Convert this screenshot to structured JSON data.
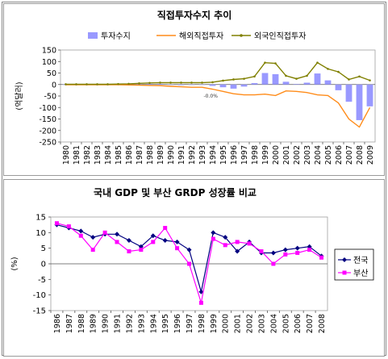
{
  "chart_data": [
    {
      "type": "bar+line",
      "title": "직접투자수지 추이",
      "ylabel": "(억달러)",
      "ylim": [
        -250,
        150
      ],
      "yticks": [
        150,
        100,
        50,
        0,
        -50,
        -100,
        -150,
        -200,
        -250
      ],
      "categories": [
        "1980",
        "1981",
        "1982",
        "1983",
        "1984",
        "1985",
        "1986",
        "1987",
        "1988",
        "1989",
        "1990",
        "1991",
        "1992",
        "1993",
        "1994",
        "1995",
        "1996",
        "1997",
        "1998",
        "1999",
        "2000",
        "2001",
        "2002",
        "2003",
        "2004",
        "2005",
        "2006",
        "2007",
        "2008",
        "2009"
      ],
      "legend_position": "top",
      "annotation": "-0.0%",
      "series": [
        {
          "name": "투자수지",
          "kind": "bar",
          "color": "#9999ff",
          "values": [
            0,
            0,
            0,
            0,
            0,
            1,
            3,
            2,
            3,
            3,
            -1,
            -3,
            -2,
            -1,
            -6,
            -12,
            -18,
            -9,
            6,
            50,
            45,
            12,
            2,
            8,
            48,
            18,
            -25,
            -75,
            -155,
            -95
          ]
        },
        {
          "name": "해외직접투자",
          "kind": "line",
          "color": "#ff8c1a",
          "values": [
            -1,
            -1,
            -1,
            -1,
            -1,
            -1,
            -2,
            -3,
            -4,
            -5,
            -8,
            -10,
            -12,
            -12,
            -20,
            -30,
            -40,
            -45,
            -45,
            -42,
            -48,
            -28,
            -30,
            -35,
            -45,
            -48,
            -80,
            -150,
            -185,
            -100
          ]
        },
        {
          "name": "외국인직접투자",
          "kind": "line",
          "color": "#808000",
          "values": [
            1,
            1,
            1,
            1,
            1,
            2,
            3,
            5,
            7,
            8,
            8,
            8,
            8,
            8,
            10,
            17,
            22,
            25,
            35,
            95,
            92,
            38,
            25,
            38,
            95,
            68,
            55,
            22,
            35,
            18
          ]
        }
      ]
    },
    {
      "type": "line",
      "title": "국내 GDP 및 부산 GRDP 성장률 비교",
      "ylabel": "(%)",
      "ylim": [
        -15,
        15
      ],
      "yticks": [
        15,
        10,
        5,
        0,
        -5,
        -10,
        -15
      ],
      "categories": [
        "1986",
        "1987",
        "1988",
        "1989",
        "1990",
        "1991",
        "1992",
        "1993",
        "1994",
        "1995",
        "1996",
        "1997",
        "1998",
        "1999",
        "2000",
        "2001",
        "2002",
        "2003",
        "2004",
        "2005",
        "2006",
        "2007",
        "2008"
      ],
      "legend_position": "right",
      "series": [
        {
          "name": "전국",
          "color": "#000080",
          "marker": "diamond",
          "values": [
            12.5,
            11.5,
            10.5,
            8.5,
            9.5,
            9.5,
            7.5,
            5.5,
            9,
            7.5,
            7,
            4.5,
            -9,
            10,
            8.5,
            4,
            7,
            3.5,
            3.5,
            4.5,
            5,
            5.5,
            2.5
          ]
        },
        {
          "name": "부산",
          "color": "#ff00ff",
          "marker": "square",
          "values": [
            13,
            12,
            9,
            4.5,
            10,
            7,
            4,
            4.5,
            7,
            11.5,
            5,
            0,
            -12.5,
            8,
            6,
            7,
            6.5,
            4,
            0,
            3,
            3.5,
            4.5,
            2
          ]
        }
      ]
    }
  ]
}
